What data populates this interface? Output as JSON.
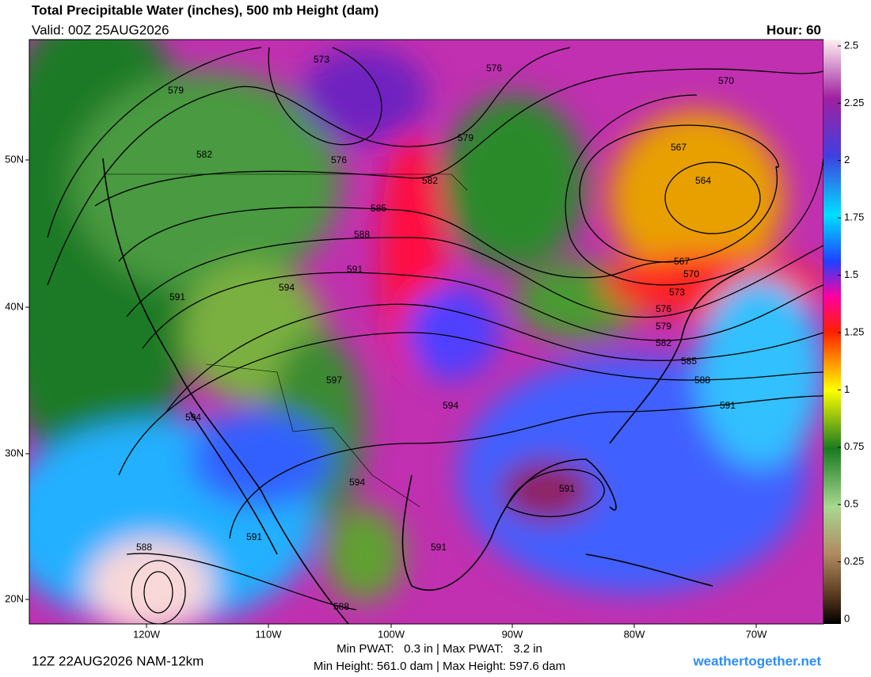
{
  "header": {
    "title": "Total Precipitable Water (inches), 500 mb Height (dam)",
    "valid": "Valid: 00Z 25AUG2026",
    "hour": "Hour: 60"
  },
  "colorbar": {
    "ticks": [
      0,
      0.25,
      0.5,
      0.75,
      1,
      1.25,
      1.5,
      1.75,
      2,
      2.25,
      2.5
    ],
    "lim": [
      0,
      2.5
    ]
  },
  "map": {
    "lat_labels": [
      "50N",
      "40N",
      "30N",
      "20N"
    ],
    "lon_labels": [
      "120W",
      "110W",
      "100W",
      "90W",
      "80W",
      "70W"
    ],
    "contour_labels": [
      "573",
      "576",
      "570",
      "579",
      "582",
      "576",
      "579",
      "567",
      "564",
      "582",
      "585",
      "588",
      "591",
      "567",
      "570",
      "573",
      "591",
      "594",
      "576",
      "579",
      "582",
      "585",
      "588",
      "597",
      "591",
      "594",
      "594",
      "594",
      "591",
      "591",
      "591",
      "588",
      "588"
    ]
  },
  "footer": {
    "run": "12Z 22AUG2026 NAM-12km",
    "pwat": "Min PWAT:   0.3 in | Max PWAT:   3.2 in",
    "height": "Min Height: 561.0 dam | Max Height: 597.6 dam",
    "site": "weathertogether.net"
  }
}
